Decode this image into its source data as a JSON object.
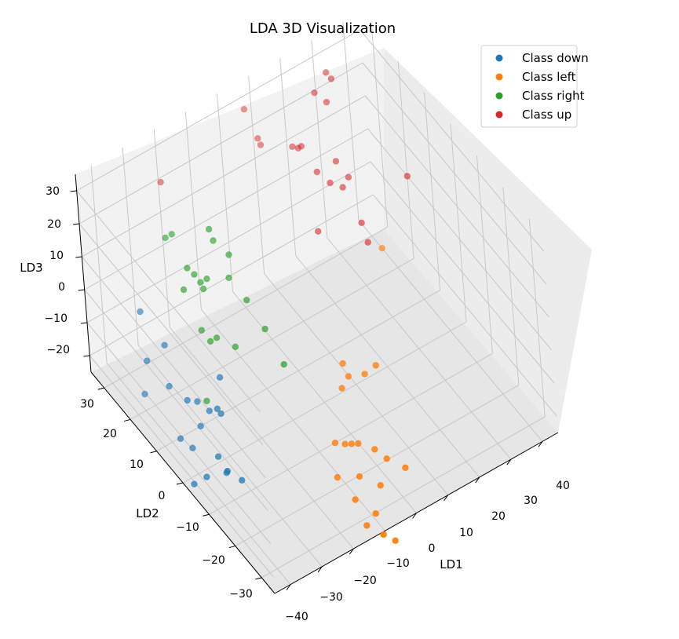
{
  "chart_data": {
    "type": "scatter",
    "title": "LDA 3D Visualization",
    "xlabel": "LD1",
    "ylabel": "LD2",
    "zlabel": "LD3",
    "x_ticks": [
      "−40",
      "−30",
      "−20",
      "−10",
      "0",
      "10",
      "20",
      "30",
      "40"
    ],
    "y_ticks": [
      "30",
      "20",
      "10",
      "0",
      "−10",
      "−20",
      "−30"
    ],
    "z_ticks": [
      "30",
      "20",
      "10",
      "0",
      "−10",
      "−20"
    ],
    "legend_position": "top-right",
    "grid": true,
    "series": [
      {
        "name": "Class down",
        "color": "#1f77b4",
        "points": [
          [
            -38,
            22,
            2
          ],
          [
            -40,
            18,
            -8
          ],
          [
            -40,
            20,
            -20
          ],
          [
            -35,
            17,
            -5
          ],
          [
            -36,
            15,
            -15
          ],
          [
            -33,
            12,
            -18
          ],
          [
            -36,
            12,
            -28
          ],
          [
            -34,
            10,
            -30
          ],
          [
            -30,
            12,
            -20
          ],
          [
            -31,
            10,
            -25
          ],
          [
            -28,
            10,
            -22
          ],
          [
            -27,
            8,
            -20
          ],
          [
            -26,
            8,
            -22
          ],
          [
            -24,
            10,
            -14
          ],
          [
            -30,
            5,
            -30
          ],
          [
            -34,
            5,
            -34
          ],
          [
            -30,
            2,
            -32
          ],
          [
            -29,
            3,
            -33
          ],
          [
            -27,
            0,
            -34
          ],
          [
            -38,
            5,
            -34
          ]
        ]
      },
      {
        "name": "Class left",
        "color": "#ff7f0e",
        "points": [
          [
            5,
            -2,
            -14
          ],
          [
            5,
            -4,
            -16
          ],
          [
            2,
            -5,
            -17
          ],
          [
            10,
            -4,
            -18
          ],
          [
            15,
            -2,
            -20
          ],
          [
            -5,
            -10,
            -25
          ],
          [
            -2,
            -10,
            -27
          ],
          [
            0,
            -10,
            -28
          ],
          [
            2,
            -10,
            -29
          ],
          [
            -8,
            -14,
            -30
          ],
          [
            4,
            -14,
            -28
          ],
          [
            6,
            -16,
            -30
          ],
          [
            -2,
            -15,
            -32
          ],
          [
            -6,
            -18,
            -34
          ],
          [
            2,
            -18,
            -34
          ],
          [
            10,
            -18,
            -33
          ],
          [
            -3,
            -22,
            -36
          ],
          [
            -6,
            -22,
            -38
          ],
          [
            -4,
            -26,
            -38
          ],
          [
            -2,
            -28,
            -39
          ],
          [
            32,
            15,
            -10
          ]
        ]
      },
      {
        "name": "Class right",
        "color": "#2ca02c",
        "points": [
          [
            -30,
            20,
            22
          ],
          [
            -28,
            20,
            22
          ],
          [
            -27,
            16,
            15
          ],
          [
            -25,
            16,
            12
          ],
          [
            -24,
            15,
            10
          ],
          [
            -22,
            15,
            10
          ],
          [
            -24,
            14,
            9
          ],
          [
            -18,
            18,
            20
          ],
          [
            -17,
            18,
            16
          ],
          [
            -14,
            16,
            12
          ],
          [
            -16,
            14,
            8
          ],
          [
            -30,
            14,
            12
          ],
          [
            -27,
            12,
            0
          ],
          [
            -24,
            10,
            -2
          ],
          [
            -20,
            8,
            -5
          ],
          [
            -14,
            10,
            4
          ],
          [
            -12,
            6,
            -2
          ],
          [
            -10,
            2,
            -10
          ],
          [
            -30,
            8,
            -16
          ],
          [
            -26,
            10,
            -2
          ]
        ]
      },
      {
        "name": "Class up",
        "color": "#d62728",
        "points": [
          [
            10,
            38,
            22
          ],
          [
            12,
            36,
            14
          ],
          [
            12,
            35,
            13
          ],
          [
            18,
            30,
            14
          ],
          [
            19,
            29,
            14
          ],
          [
            20,
            29,
            14
          ],
          [
            26,
            30,
            26
          ],
          [
            28,
            28,
            24
          ],
          [
            30,
            30,
            30
          ],
          [
            30,
            28,
            30
          ],
          [
            22,
            26,
            8
          ],
          [
            28,
            26,
            8
          ],
          [
            25,
            25,
            4
          ],
          [
            28,
            24,
            2
          ],
          [
            30,
            24,
            4
          ],
          [
            18,
            22,
            -4
          ],
          [
            30,
            20,
            -6
          ],
          [
            30,
            18,
            -10
          ],
          [
            45,
            20,
            0
          ],
          [
            -20,
            34,
            20
          ]
        ]
      }
    ]
  }
}
